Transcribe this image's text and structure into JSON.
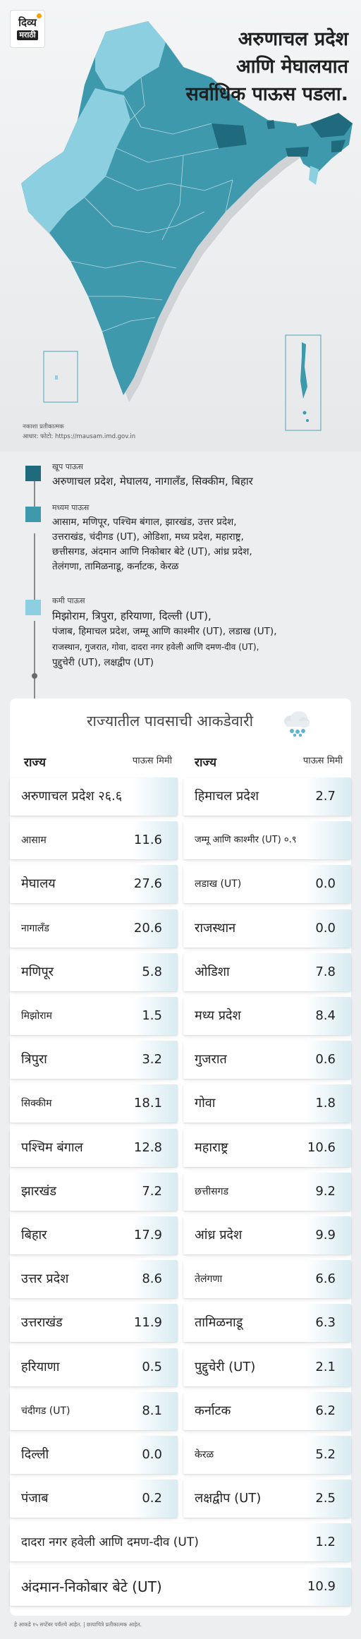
{
  "header": {
    "logo_line1": "दिव्य",
    "logo_line2": "मराठी",
    "headline": [
      "अरुणाचल प्रदेश",
      "आणि मेघालयात",
      "सर्वाधिक पाऊस पडला."
    ]
  },
  "map": {
    "note_line1": "नकाशा प्रतीकात्मक",
    "note_line2": "आधार: फोटो: https://mausam.imd.gov.in",
    "colors": {
      "heavy": "#1f6b7d",
      "medium": "#3f99ad",
      "low": "#8ccfe0"
    }
  },
  "legend": [
    {
      "title": "खूप पाऊस",
      "color": "#1f6b7d",
      "lines": [
        "अरुणाचल प्रदेश, मेघालय, नागालँड, सिक्कीम, बिहार"
      ]
    },
    {
      "title": "मध्यम पाऊस",
      "color": "#3f99ad",
      "lines": [
        "आसाम, मणिपूर, पश्चिम बंगाल, झारखंड, उत्तर प्रदेश,",
        "उत्तराखंड, चंदीगड (UT), ओडिशा, मध्य प्रदेश, महाराष्ट्र,",
        "छत्तीसगड, अंदमान आणि निकोबार बेटे (UT), आंध्र प्रदेश,",
        "तेलंगणा, तामिळनाडू, कर्नाटक, केरळ"
      ]
    },
    {
      "title": "कमी पाऊस",
      "color": "#8ccfe0",
      "lines": [
        "मिझोराम, त्रिपुरा, हरियाणा, दिल्ली (UT),",
        "पंजाब, हिमाचल प्रदेश, जम्मू आणि काश्मीर (UT), लडाख (UT),",
        "राजस्थान, गुजरात, गोवा, दादरा नगर हवेली आणि दमण-दीव (UT),",
        "पुद्दुचेरी (UT), लक्षद्वीप (UT)"
      ]
    }
  ],
  "table": {
    "title": "राज्यातील पावसाची आकडेवारी",
    "col_state": "राज्य",
    "col_rain": "पाऊस मिमी",
    "left": [
      {
        "name": "अरुणाचल प्रदेश २६.६",
        "value": ""
      },
      {
        "name": "आसाम",
        "value": "11.6"
      },
      {
        "name": "मेघालय",
        "value": "27.6"
      },
      {
        "name": "नागालँड",
        "value": "20.6"
      },
      {
        "name": "मणिपूर",
        "value": "5.8"
      },
      {
        "name": "मिझोराम",
        "value": "1.5"
      },
      {
        "name": "त्रिपुरा",
        "value": "3.2"
      },
      {
        "name": "सिक्कीम",
        "value": "18.1"
      },
      {
        "name": "पश्चिम बंगाल",
        "value": "12.8"
      },
      {
        "name": "झारखंड",
        "value": "7.2"
      },
      {
        "name": "बिहार",
        "value": "17.9"
      },
      {
        "name": "उत्तर प्रदेश",
        "value": "8.6"
      },
      {
        "name": "उत्तराखंड",
        "value": "11.9"
      },
      {
        "name": "हरियाणा",
        "value": "0.5"
      },
      {
        "name": "चंदीगड (UT)",
        "value": "8.1"
      },
      {
        "name": "दिल्ली",
        "value": "0.0"
      },
      {
        "name": "पंजाब",
        "value": "0.2"
      }
    ],
    "right": [
      {
        "name": "हिमाचल प्रदेश",
        "value": "2.7"
      },
      {
        "name": "जम्मू आणि काश्मीर (UT) ०.९",
        "value": ""
      },
      {
        "name": "लडाख (UT)",
        "value": "0.0"
      },
      {
        "name": "राजस्थान",
        "value": "0.0"
      },
      {
        "name": "ओडिशा",
        "value": "7.8"
      },
      {
        "name": "मध्य प्रदेश",
        "value": "8.4"
      },
      {
        "name": "गुजरात",
        "value": "0.6"
      },
      {
        "name": "गोवा",
        "value": "1.8"
      },
      {
        "name": "महाराष्ट्र",
        "value": "10.6"
      },
      {
        "name": "छत्तीसगड",
        "value": "9.2"
      },
      {
        "name": "आंध्र प्रदेश",
        "value": "9.9"
      },
      {
        "name": "तेलंगणा",
        "value": "6.6"
      },
      {
        "name": "तामिळनाडू",
        "value": "6.3"
      },
      {
        "name": "पुद्दुचेरी (UT)",
        "value": "2.1"
      },
      {
        "name": "कर्नाटक",
        "value": "6.2"
      },
      {
        "name": "केरळ",
        "value": "5.2"
      },
      {
        "name": "लक्षद्वीप (UT)",
        "value": "2.5"
      }
    ],
    "full": [
      {
        "name": "दादरा नगर हवेली आणि दमण-दीव (UT)",
        "value": "1.2"
      },
      {
        "name": "अंदमान-निकोबार बेटे (UT)",
        "value": "10.9"
      }
    ]
  },
  "footnote": "हे आकडे १५ सप्टेंबर पर्यंतचे आहेत. | छायाचित्रे प्रतीकात्मक आहेत."
}
